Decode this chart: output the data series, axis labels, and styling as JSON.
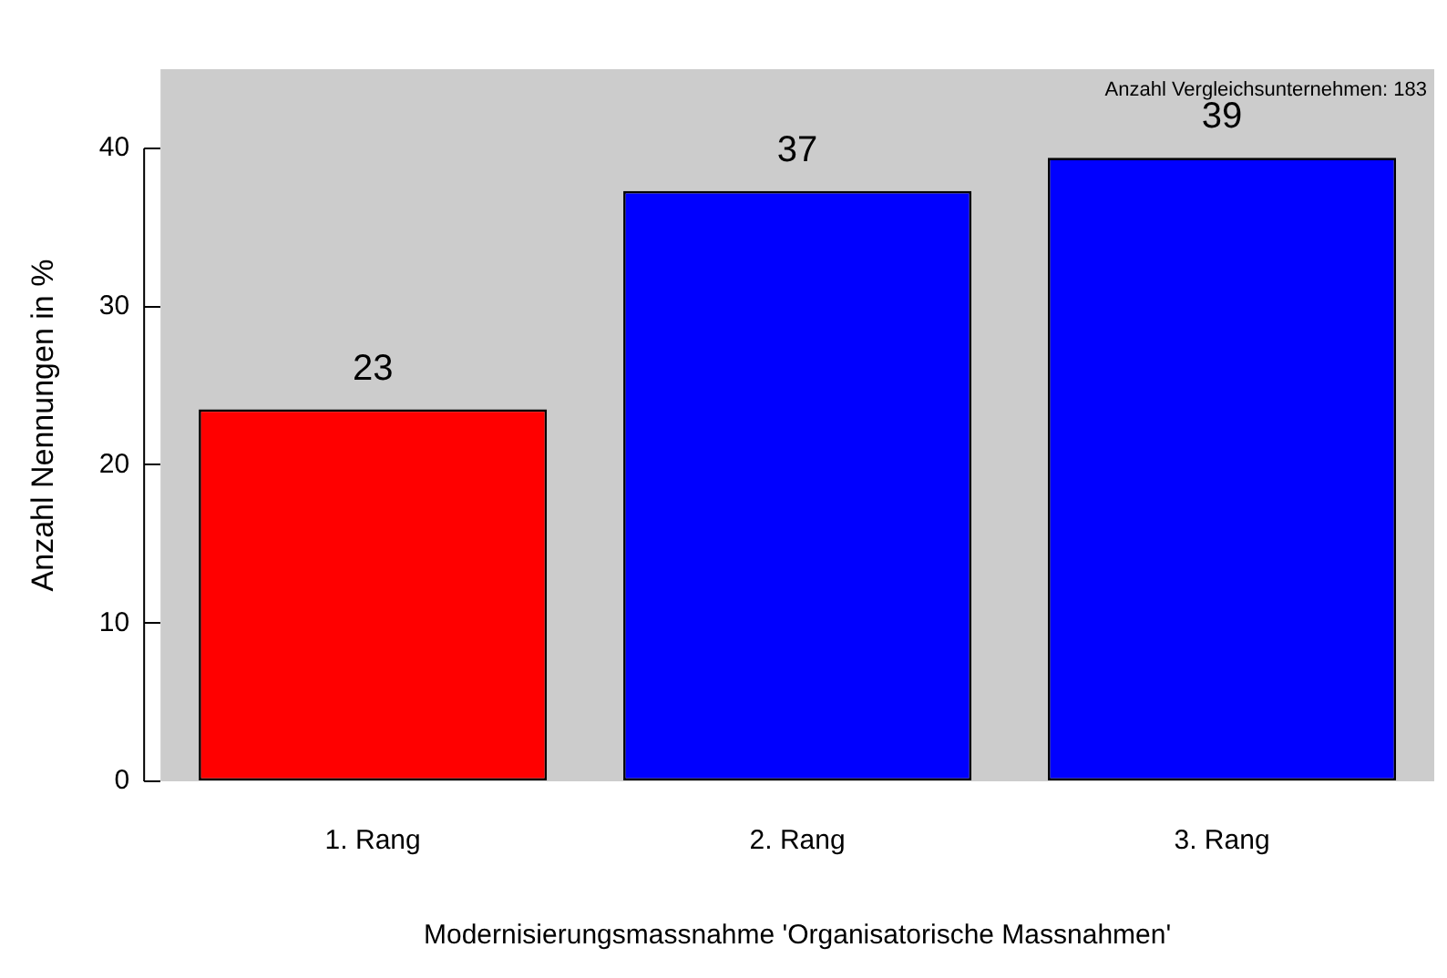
{
  "chart_data": {
    "type": "bar",
    "xlabel": "Modernisierungsmassnahme 'Organisatorische Massnahmen'",
    "ylabel": "Anzahl Nennungen in %",
    "annotations": [
      "Anzahl Vergleichsunternehmen: 183"
    ],
    "categories": [
      "1. Rang",
      "2. Rang",
      "3. Rang"
    ],
    "values": [
      23.5,
      37.3,
      39.4
    ],
    "colors": [
      "#ff0000",
      "#0000ff",
      "#0000ff"
    ],
    "value_labels": [
      "23",
      "37",
      "39"
    ],
    "ylim": [
      0,
      45
    ],
    "yticks": [
      0,
      10,
      20,
      30,
      40
    ],
    "grid": false,
    "legend": false
  }
}
